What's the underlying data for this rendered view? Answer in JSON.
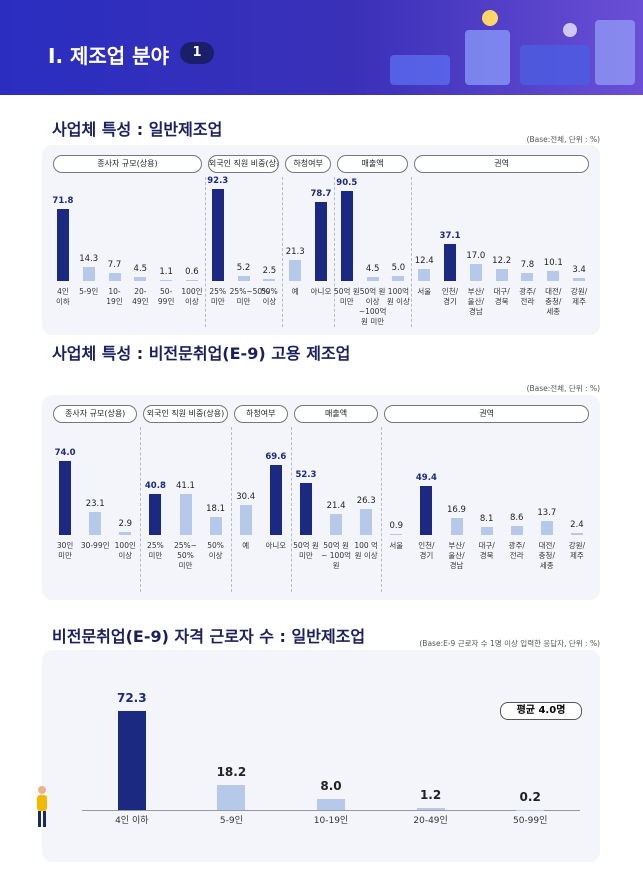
{
  "header": {
    "title": "Ⅰ. 제조업 분야",
    "badge": "1"
  },
  "chart_data": [
    {
      "type": "grouped-bar",
      "title": "사업체 특성 : 일반제조업",
      "note": "(Base:전체, 단위 : %)",
      "ylim": [
        0,
        100
      ],
      "groups": [
        {
          "name": "종사자 규모(상용)",
          "categories": [
            "4인 이하",
            "5-9인",
            "10-19인",
            "20-49인",
            "50-99인",
            "100인 이상"
          ],
          "values": [
            71.8,
            14.3,
            7.7,
            4.5,
            1.1,
            0.6
          ],
          "colors": [
            "#1b2a80",
            "#b7c9ea",
            "#b7c9ea",
            "#b7c9ea",
            "#b7c9ea",
            "#b7c9ea"
          ]
        },
        {
          "name": "외국인 직원 비중(상용)",
          "categories": [
            "25% 미만",
            "25%~50% 미만",
            "50% 이상"
          ],
          "values": [
            92.3,
            5.2,
            2.5
          ],
          "colors": [
            "#1b2a80",
            "#b7c9ea",
            "#b7c9ea"
          ]
        },
        {
          "name": "하청여부",
          "categories": [
            "예",
            "아니오"
          ],
          "values": [
            21.3,
            78.7
          ],
          "colors": [
            "#b7c9ea",
            "#1b2a80"
          ]
        },
        {
          "name": "매출액",
          "categories": [
            "50억 원 미만",
            "50억 원 이상 ~100억 원 미만",
            "100억 원 이상"
          ],
          "values": [
            90.5,
            4.5,
            5
          ],
          "value_labels": [
            "90.5",
            "4.5",
            "5.0"
          ],
          "colors": [
            "#1b2a80",
            "#b7c9ea",
            "#b7c9ea"
          ]
        },
        {
          "name": "권역",
          "categories": [
            "서울",
            "인천/ 경기",
            "부산/ 울산/ 경남",
            "대구/ 경북",
            "광주/ 전라",
            "대전/ 충청/ 세종",
            "강원/ 제주"
          ],
          "values": [
            12.4,
            37.1,
            17,
            12.2,
            7.8,
            10.1,
            3.4
          ],
          "value_labels": [
            "12.4",
            "37.1",
            "17.0",
            "12.2",
            "7.8",
            "10.1",
            "3.4"
          ],
          "colors": [
            "#b7c9ea",
            "#1b2a80",
            "#b7c9ea",
            "#b7c9ea",
            "#b7c9ea",
            "#b7c9ea",
            "#b7c9ea"
          ]
        }
      ]
    },
    {
      "type": "grouped-bar",
      "title": "사업체 특성 : 비전문취업(E-9) 고용 제조업",
      "note": "(Base:전체, 단위 : %)",
      "ylim": [
        0,
        100
      ],
      "groups": [
        {
          "name": "종사자 규모(상용)",
          "categories": [
            "30인 미만",
            "30-99인",
            "100인 이상"
          ],
          "values": [
            74,
            23.1,
            2.9
          ],
          "value_labels": [
            "74.0",
            "23.1",
            "2.9"
          ],
          "colors": [
            "#1b2a80",
            "#b7c9ea",
            "#b7c9ea"
          ]
        },
        {
          "name": "외국인 직원 비중(상용)",
          "categories": [
            "25% 미만",
            "25%~ 50% 미만",
            "50% 이상"
          ],
          "values": [
            40.8,
            41.1,
            18.1
          ],
          "colors": [
            "#1b2a80",
            "#b7c9ea",
            "#b7c9ea"
          ]
        },
        {
          "name": "하청여부",
          "categories": [
            "예",
            "아니오"
          ],
          "values": [
            30.4,
            69.6
          ],
          "colors": [
            "#b7c9ea",
            "#1b2a80"
          ]
        },
        {
          "name": "매출액",
          "categories": [
            "50억 원 미만",
            "50억 원 ~ 100억 원",
            "100 억 원 이상"
          ],
          "values": [
            52.3,
            21.4,
            26.3
          ],
          "colors": [
            "#1b2a80",
            "#b7c9ea",
            "#b7c9ea"
          ]
        },
        {
          "name": "권역",
          "categories": [
            "서울",
            "인천/ 경기",
            "부산/ 울산/ 경남",
            "대구/ 경북",
            "광주/ 전라",
            "대전/ 충청/ 세종",
            "강원/ 제주"
          ],
          "values": [
            0.9,
            49.4,
            16.9,
            8.1,
            8.6,
            13.7,
            2.4
          ],
          "colors": [
            "#b7c9ea",
            "#1b2a80",
            "#b7c9ea",
            "#b7c9ea",
            "#b7c9ea",
            "#b7c9ea",
            "#b7c9ea"
          ]
        }
      ]
    },
    {
      "type": "bar",
      "title": "비전문취업(E-9) 자격 근로자 수 : 일반제조업",
      "note": "(Base:E-9 근로자 수 1명 이상 입력한 응답자, 단위 : %)",
      "annotation": "평균 4.0명",
      "ylim": [
        0,
        80
      ],
      "categories": [
        "4인 이하",
        "5-9인",
        "10-19인",
        "20-49인",
        "50-99인"
      ],
      "values": [
        72.3,
        18.2,
        8,
        1.2,
        0.2
      ],
      "value_labels": [
        "72.3",
        "18.2",
        "8.0",
        "1.2",
        "0.2"
      ],
      "colors": [
        "#1b2a80",
        "#b7c9ea",
        "#b7c9ea",
        "#b7c9ea",
        "#b7c9ea"
      ]
    }
  ]
}
